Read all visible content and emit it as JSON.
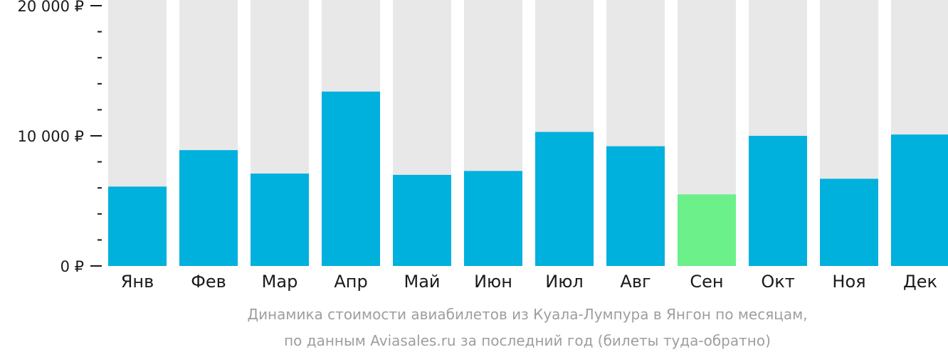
{
  "chart_data": {
    "type": "bar",
    "categories": [
      "Янв",
      "Фев",
      "Мар",
      "Апр",
      "Май",
      "Июн",
      "Июл",
      "Авг",
      "Сен",
      "Окт",
      "Ноя",
      "Дек"
    ],
    "values": [
      6100,
      8900,
      7100,
      13400,
      7000,
      7300,
      10300,
      9200,
      5500,
      10000,
      6700,
      10100
    ],
    "ylim": [
      0,
      20000
    ],
    "yticks": [
      {
        "value": 0,
        "label": "0 ₽"
      },
      {
        "value": 10000,
        "label": "10 000 ₽"
      },
      {
        "value": 20000,
        "label": "20 000 ₽"
      }
    ],
    "minor_tick_step": 2000,
    "highlight_index": 8,
    "grid": false,
    "colors": {
      "bar": "#00b0dd",
      "highlight": "#6cf08a",
      "background_bar": "#e8e8e8",
      "axis": "#1a1a1a"
    }
  },
  "caption": {
    "line1": "Динамика стоимости авиабилетов из Куала-Лумпура в Янгон по месяцам,",
    "line2": "по данным Aviasales.ru за последний год (билеты туда-обратно)"
  }
}
